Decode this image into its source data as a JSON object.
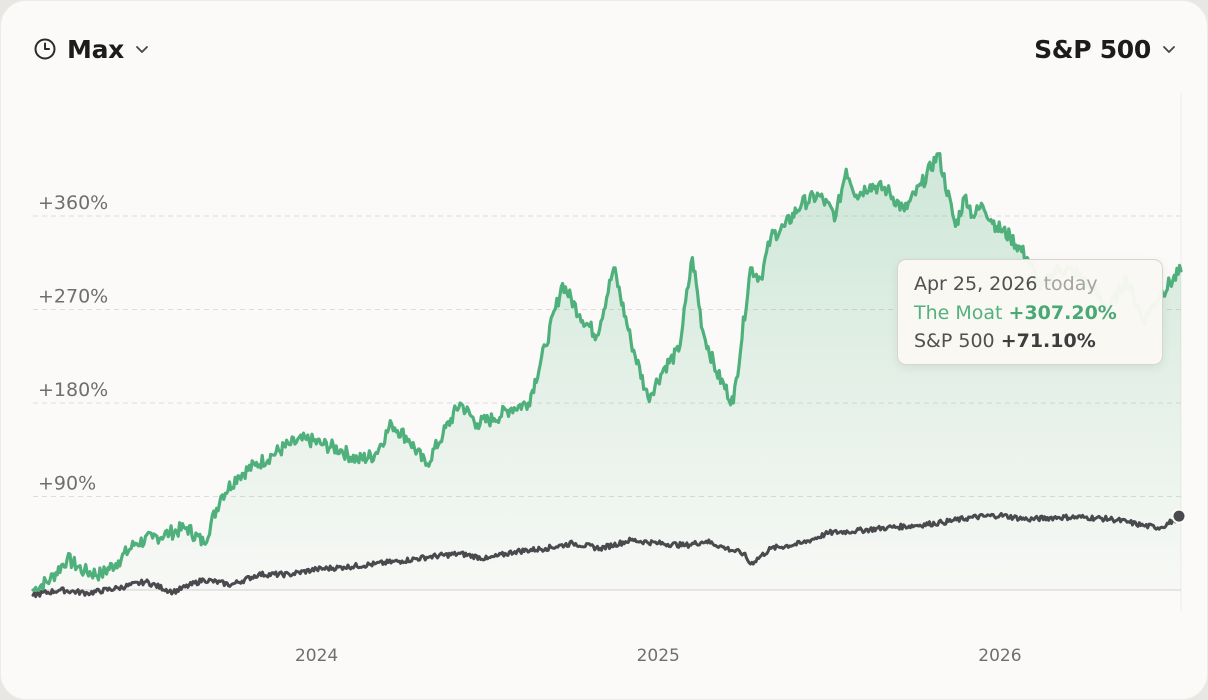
{
  "header": {
    "range_label": "Max",
    "benchmark_label": "S&P 500"
  },
  "tooltip": {
    "date": "Apr 25, 2026",
    "today": "today",
    "series1_name": "The Moat",
    "series1_value": "+307.20%",
    "series2_name": "S&P 500",
    "series2_value": "+71.10%"
  },
  "colors": {
    "moat": "#4fb07c",
    "sp500": "#4a4a4e",
    "grid": "#dcdcdc"
  },
  "chart_data": {
    "type": "line",
    "y_ticks": [
      "+90%",
      "+180%",
      "+270%",
      "+360%"
    ],
    "y_tick_values": [
      90,
      180,
      270,
      360
    ],
    "x_ticks": [
      "2024",
      "2025",
      "2026"
    ],
    "x_tick_values": [
      2024.0,
      2025.0,
      2026.0
    ],
    "ylim": [
      0,
      430
    ],
    "xlim": [
      2023.17,
      2026.53
    ],
    "grid": "horizontal dashed",
    "series": [
      {
        "name": "The Moat",
        "x": [
          2023.17,
          2023.22,
          2023.27,
          2023.32,
          2023.37,
          2023.42,
          2023.47,
          2023.52,
          2023.57,
          2023.62,
          2023.67,
          2023.72,
          2023.77,
          2023.82,
          2023.87,
          2023.92,
          2023.97,
          2024.02,
          2024.07,
          2024.12,
          2024.17,
          2024.22,
          2024.27,
          2024.32,
          2024.37,
          2024.42,
          2024.47,
          2024.52,
          2024.57,
          2024.62,
          2024.67,
          2024.72,
          2024.77,
          2024.82,
          2024.87,
          2024.92,
          2024.97,
          2025.02,
          2025.06,
          2025.1,
          2025.13,
          2025.17,
          2025.22,
          2025.27,
          2025.3,
          2025.33,
          2025.37,
          2025.42,
          2025.47,
          2025.52,
          2025.55,
          2025.58,
          2025.62,
          2025.67,
          2025.72,
          2025.77,
          2025.82,
          2025.87,
          2025.9,
          2025.92,
          2025.95,
          2025.99,
          2026.03,
          2026.08,
          2026.12,
          2026.17,
          2026.22,
          2026.27,
          2026.32,
          2026.37,
          2026.42,
          2026.47,
          2026.53
        ],
        "values": [
          0,
          10,
          30,
          18,
          15,
          28,
          45,
          50,
          55,
          60,
          45,
          90,
          110,
          120,
          130,
          140,
          145,
          140,
          135,
          125,
          130,
          160,
          145,
          120,
          150,
          180,
          160,
          165,
          175,
          180,
          235,
          295,
          265,
          245,
          310,
          240,
          185,
          215,
          230,
          320,
          250,
          210,
          180,
          310,
          300,
          340,
          350,
          372,
          380,
          360,
          405,
          380,
          390,
          385,
          365,
          390,
          420,
          350,
          380,
          360,
          370,
          350,
          340,
          320,
          290,
          310,
          305,
          290,
          270,
          300,
          260,
          285,
          307.2
        ]
      },
      {
        "name": "S&P 500",
        "x": [
          2023.17,
          2023.25,
          2023.33,
          2023.42,
          2023.5,
          2023.58,
          2023.67,
          2023.75,
          2023.83,
          2023.92,
          2024.0,
          2024.08,
          2024.17,
          2024.25,
          2024.33,
          2024.42,
          2024.5,
          2024.58,
          2024.67,
          2024.75,
          2024.83,
          2024.92,
          2025.0,
          2025.08,
          2025.14,
          2025.2,
          2025.25,
          2025.27,
          2025.33,
          2025.42,
          2025.5,
          2025.58,
          2025.67,
          2025.75,
          2025.83,
          2025.92,
          2026.0,
          2026.08,
          2026.17,
          2026.25,
          2026.33,
          2026.38,
          2026.42,
          2026.47,
          2026.53
        ],
        "values": [
          -5,
          0,
          -3,
          2,
          8,
          -2,
          10,
          5,
          15,
          15,
          20,
          22,
          25,
          28,
          32,
          35,
          30,
          37,
          40,
          45,
          40,
          48,
          45,
          43,
          47,
          40,
          35,
          25,
          40,
          45,
          55,
          57,
          60,
          62,
          65,
          70,
          72,
          68,
          70,
          70,
          68,
          65,
          62,
          60,
          71.1
        ]
      }
    ]
  }
}
